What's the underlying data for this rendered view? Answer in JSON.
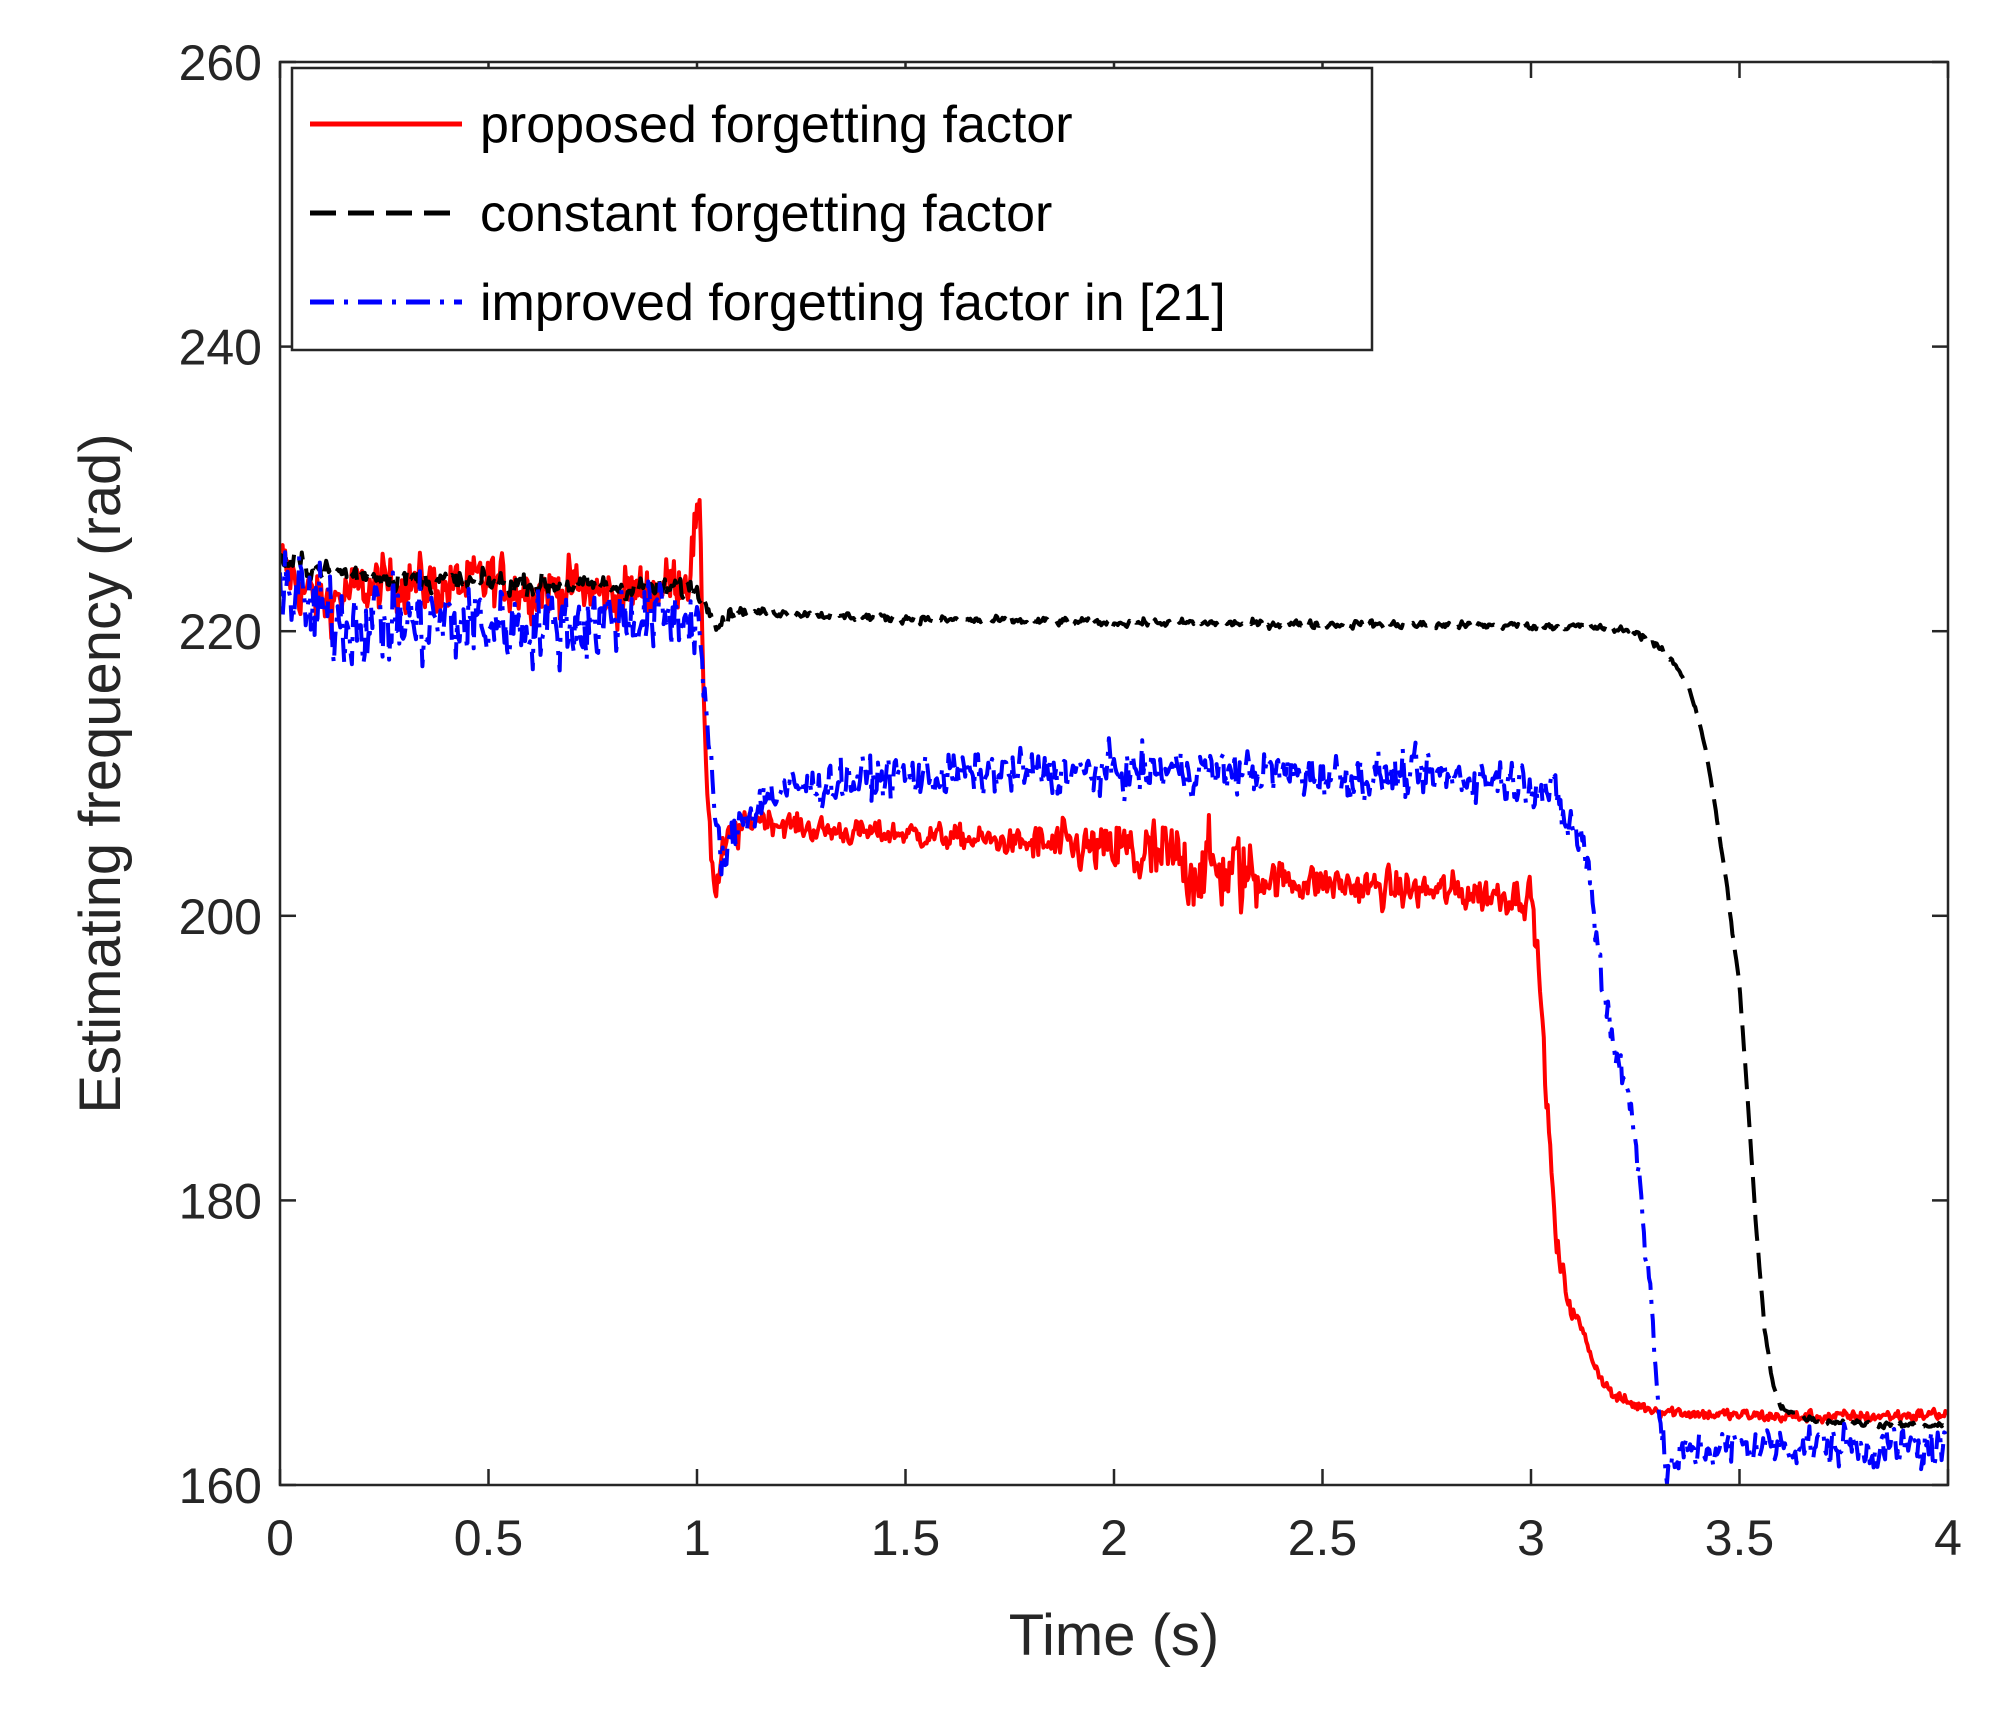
{
  "chart_data": {
    "type": "line",
    "title": "",
    "xlabel": "Time (s)",
    "ylabel": "Estimating frequency (rad)",
    "xlim": [
      0,
      4
    ],
    "ylim": [
      160,
      260
    ],
    "xticks": [
      0,
      0.5,
      1,
      1.5,
      2,
      2.5,
      3,
      3.5,
      4
    ],
    "xtick_labels": [
      "0",
      "0.5",
      "1",
      "1.5",
      "2",
      "2.5",
      "3",
      "3.5",
      "4"
    ],
    "yticks": [
      160,
      180,
      200,
      220,
      240,
      260
    ],
    "ytick_labels": [
      "160",
      "180",
      "200",
      "220",
      "240",
      "260"
    ],
    "grid": false,
    "legend_position": "top-left",
    "series": [
      {
        "name": "proposed forgetting factor",
        "color": "#ff0000",
        "style": "solid",
        "points": [
          [
            0,
            225
          ],
          [
            0.05,
            223
          ],
          [
            0.1,
            222
          ],
          [
            0.2,
            223
          ],
          [
            0.3,
            223.5
          ],
          [
            0.4,
            223
          ],
          [
            0.5,
            223.5
          ],
          [
            0.6,
            223
          ],
          [
            0.7,
            223
          ],
          [
            0.8,
            222.5
          ],
          [
            0.9,
            223
          ],
          [
            0.98,
            224
          ],
          [
            1.0,
            228
          ],
          [
            1.01,
            224
          ],
          [
            1.02,
            212
          ],
          [
            1.035,
            204
          ],
          [
            1.045,
            201.5
          ],
          [
            1.06,
            204
          ],
          [
            1.08,
            205.5
          ],
          [
            1.1,
            206
          ],
          [
            1.15,
            207
          ],
          [
            1.2,
            206.5
          ],
          [
            1.3,
            206
          ],
          [
            1.4,
            205.8
          ],
          [
            1.5,
            205.8
          ],
          [
            1.6,
            205.5
          ],
          [
            1.7,
            205.3
          ],
          [
            1.8,
            205
          ],
          [
            1.9,
            204.8
          ],
          [
            2.0,
            204.5
          ],
          [
            2.1,
            204
          ],
          [
            2.2,
            203.5
          ],
          [
            2.3,
            203
          ],
          [
            2.4,
            202.5
          ],
          [
            2.5,
            202.3
          ],
          [
            2.6,
            202
          ],
          [
            2.7,
            201.8
          ],
          [
            2.8,
            201.7
          ],
          [
            2.9,
            201.5
          ],
          [
            3.0,
            201.5
          ],
          [
            3.02,
            196
          ],
          [
            3.04,
            186
          ],
          [
            3.06,
            177
          ],
          [
            3.08,
            174
          ],
          [
            3.1,
            172.5
          ],
          [
            3.12,
            171
          ],
          [
            3.14,
            169.5
          ],
          [
            3.16,
            168
          ],
          [
            3.18,
            167
          ],
          [
            3.2,
            166.2
          ],
          [
            3.25,
            165.6
          ],
          [
            3.3,
            165.3
          ],
          [
            3.4,
            165
          ],
          [
            3.5,
            164.9
          ],
          [
            3.6,
            164.8
          ],
          [
            3.7,
            164.8
          ],
          [
            3.8,
            164.8
          ],
          [
            3.9,
            164.9
          ],
          [
            4.0,
            165
          ]
        ],
        "noise": [
          [
            0,
            1.0,
            1.8
          ],
          [
            1.0,
            1.02,
            2.5
          ],
          [
            1.02,
            1.1,
            1.2
          ],
          [
            1.1,
            1.8,
            0.8
          ],
          [
            1.8,
            2.0,
            1.5
          ],
          [
            2.0,
            2.35,
            2.6
          ],
          [
            2.35,
            3.0,
            1.2
          ],
          [
            3.0,
            3.1,
            1.0
          ],
          [
            3.1,
            4.0,
            0.4
          ]
        ]
      },
      {
        "name": "constant forgetting factor",
        "color": "#000000",
        "style": "dashed",
        "points": [
          [
            0,
            225
          ],
          [
            0.1,
            224.3
          ],
          [
            0.2,
            224
          ],
          [
            0.3,
            223.7
          ],
          [
            0.4,
            223.5
          ],
          [
            0.5,
            223.4
          ],
          [
            0.6,
            223.3
          ],
          [
            0.7,
            223.2
          ],
          [
            0.8,
            223.1
          ],
          [
            0.9,
            223
          ],
          [
            1.0,
            222.9
          ],
          [
            1.03,
            221.5
          ],
          [
            1.05,
            220.6
          ],
          [
            1.08,
            221.2
          ],
          [
            1.1,
            221.4
          ],
          [
            1.2,
            221.3
          ],
          [
            1.4,
            221
          ],
          [
            1.6,
            220.8
          ],
          [
            1.8,
            220.7
          ],
          [
            2.0,
            220.6
          ],
          [
            2.2,
            220.6
          ],
          [
            2.4,
            220.5
          ],
          [
            2.6,
            220.5
          ],
          [
            2.8,
            220.4
          ],
          [
            3.0,
            220.4
          ],
          [
            3.15,
            220.3
          ],
          [
            3.25,
            220
          ],
          [
            3.3,
            219
          ],
          [
            3.35,
            217.5
          ],
          [
            3.38,
            216
          ],
          [
            3.41,
            213
          ],
          [
            3.44,
            208
          ],
          [
            3.47,
            202
          ],
          [
            3.5,
            195
          ],
          [
            3.52,
            187
          ],
          [
            3.54,
            178
          ],
          [
            3.56,
            171
          ],
          [
            3.58,
            167
          ],
          [
            3.6,
            165.5
          ],
          [
            3.65,
            164.8
          ],
          [
            3.7,
            164.5
          ],
          [
            3.8,
            164.3
          ],
          [
            3.9,
            164.2
          ],
          [
            4.0,
            164.1
          ]
        ],
        "noise": [
          [
            0,
            1.0,
            0.7
          ],
          [
            1.0,
            1.1,
            0.5
          ],
          [
            1.1,
            3.3,
            0.25
          ],
          [
            3.3,
            4.0,
            0.2
          ]
        ]
      },
      {
        "name": "improved forgetting factor in [21]",
        "color": "#0000ff",
        "style": "dashdot",
        "points": [
          [
            0,
            224
          ],
          [
            0.05,
            222
          ],
          [
            0.1,
            221
          ],
          [
            0.2,
            221
          ],
          [
            0.3,
            220.5
          ],
          [
            0.4,
            220.5
          ],
          [
            0.5,
            220.5
          ],
          [
            0.6,
            220.5
          ],
          [
            0.7,
            220.5
          ],
          [
            0.8,
            221
          ],
          [
            0.9,
            221
          ],
          [
            1.0,
            221
          ],
          [
            1.01,
            219
          ],
          [
            1.03,
            211
          ],
          [
            1.05,
            205
          ],
          [
            1.07,
            204
          ],
          [
            1.1,
            206.5
          ],
          [
            1.15,
            208
          ],
          [
            1.2,
            208.8
          ],
          [
            1.3,
            209.2
          ],
          [
            1.4,
            209.6
          ],
          [
            1.5,
            209.8
          ],
          [
            1.6,
            209.9
          ],
          [
            1.7,
            210
          ],
          [
            1.8,
            210
          ],
          [
            1.9,
            210.1
          ],
          [
            2.0,
            210.1
          ],
          [
            2.2,
            210.2
          ],
          [
            2.4,
            210
          ],
          [
            2.6,
            209.8
          ],
          [
            2.8,
            209.8
          ],
          [
            3.0,
            209.5
          ],
          [
            3.05,
            208.5
          ],
          [
            3.08,
            207
          ],
          [
            3.1,
            206
          ],
          [
            3.12,
            205.5
          ],
          [
            3.14,
            203
          ],
          [
            3.16,
            198
          ],
          [
            3.18,
            194
          ],
          [
            3.2,
            191
          ],
          [
            3.22,
            189
          ],
          [
            3.24,
            186
          ],
          [
            3.26,
            182
          ],
          [
            3.28,
            176
          ],
          [
            3.3,
            169
          ],
          [
            3.31,
            163
          ],
          [
            3.33,
            161
          ],
          [
            3.36,
            162
          ],
          [
            3.4,
            162.5
          ],
          [
            3.5,
            162.7
          ],
          [
            3.6,
            162.8
          ],
          [
            3.7,
            162.8
          ],
          [
            3.8,
            162.7
          ],
          [
            3.9,
            162.6
          ],
          [
            4.0,
            162.5
          ]
        ],
        "noise": [
          [
            0,
            0.5,
            3.0
          ],
          [
            0.5,
            1.0,
            2.4
          ],
          [
            1.0,
            1.1,
            1.5
          ],
          [
            1.1,
            3.0,
            1.4
          ],
          [
            3.0,
            3.3,
            1.6
          ],
          [
            3.3,
            4.0,
            1.3
          ]
        ]
      }
    ]
  }
}
